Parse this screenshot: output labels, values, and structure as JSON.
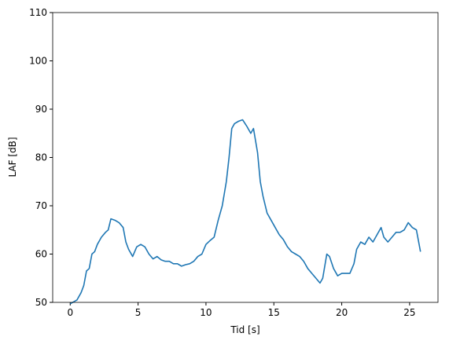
{
  "chart_data": {
    "type": "line",
    "xlabel": "Tid [s]",
    "ylabel": "LAF [dB]",
    "x": [
      0,
      0.5,
      0.8,
      1.0,
      1.2,
      1.4,
      1.6,
      1.8,
      2.0,
      2.3,
      2.6,
      2.8,
      3.0,
      3.3,
      3.6,
      3.9,
      4.1,
      4.3,
      4.6,
      4.9,
      5.2,
      5.5,
      5.8,
      6.1,
      6.4,
      6.7,
      7.0,
      7.3,
      7.6,
      7.9,
      8.2,
      8.5,
      8.8,
      9.1,
      9.4,
      9.7,
      10.0,
      10.3,
      10.6,
      10.9,
      11.2,
      11.5,
      11.7,
      11.9,
      12.1,
      12.4,
      12.7,
      13.0,
      13.3,
      13.5,
      13.8,
      14.0,
      14.2,
      14.5,
      14.8,
      15.1,
      15.4,
      15.7,
      16.0,
      16.3,
      16.6,
      16.9,
      17.2,
      17.5,
      17.8,
      18.1,
      18.4,
      18.6,
      18.9,
      19.1,
      19.4,
      19.7,
      20.0,
      20.3,
      20.6,
      20.9,
      21.1,
      21.4,
      21.7,
      22.0,
      22.3,
      22.6,
      22.9,
      23.1,
      23.4,
      23.7,
      24.0,
      24.3,
      24.6,
      24.9,
      25.2,
      25.5,
      25.8
    ],
    "series": [
      {
        "color": "#1f77b4",
        "values": [
          49.7,
          50.5,
          52,
          53.5,
          56.5,
          57,
          60,
          60.5,
          62,
          63.5,
          64.5,
          65,
          67.3,
          67,
          66.5,
          65.5,
          62.5,
          61,
          59.5,
          61.5,
          62,
          61.5,
          60,
          59,
          59.5,
          58.8,
          58.5,
          58.5,
          58,
          58,
          57.5,
          57.8,
          58,
          58.5,
          59.5,
          60,
          62,
          62.8,
          63.5,
          67,
          70,
          75,
          80,
          86,
          87,
          87.5,
          87.8,
          86.5,
          85,
          86,
          81,
          75,
          72,
          68.5,
          67,
          65.5,
          64,
          63,
          61.5,
          60.5,
          60,
          59.5,
          58.5,
          57,
          56,
          55,
          54,
          55,
          60,
          59.5,
          57,
          55.5,
          56,
          56,
          56,
          58,
          61,
          62.5,
          62,
          63.5,
          62.5,
          64,
          65.5,
          63.5,
          62.5,
          63.5,
          64.5,
          64.5,
          65,
          66.5,
          65.5,
          65,
          60.5
        ]
      }
    ],
    "xlim": [
      -1.29,
      27.09
    ],
    "ylim": [
      50,
      110
    ],
    "xticks": [
      0,
      5,
      10,
      15,
      20,
      25
    ],
    "yticks": [
      50,
      60,
      70,
      80,
      90,
      100,
      110
    ],
    "grid": false
  }
}
